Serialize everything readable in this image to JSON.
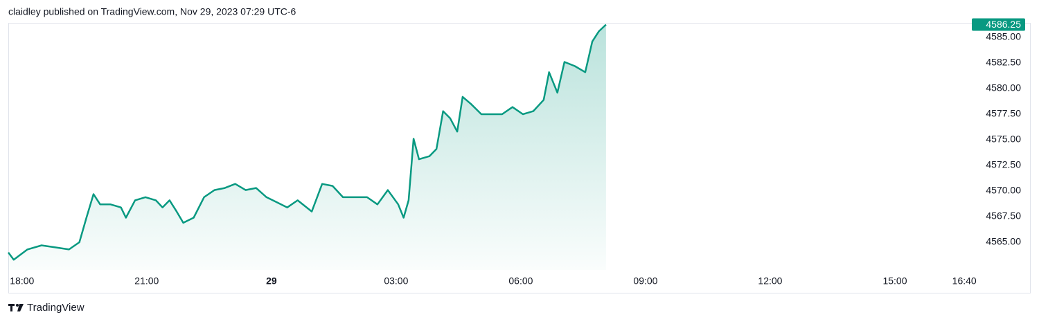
{
  "header": {
    "title": "claidley published on TradingView.com, Nov 29, 2023 07:29 UTC-6"
  },
  "chart_data": {
    "type": "area",
    "series": [
      {
        "color": "#089981",
        "x": [
          17.67,
          17.8,
          18.13,
          18.47,
          18.8,
          19.13,
          19.38,
          19.55,
          19.72,
          19.88,
          20.13,
          20.38,
          20.5,
          20.72,
          20.97,
          21.22,
          21.38,
          21.55,
          21.72,
          21.88,
          22.13,
          22.38,
          22.63,
          22.88,
          23.13,
          23.38,
          23.63,
          23.88,
          24.13,
          24.38,
          24.63,
          24.97,
          25.22,
          25.47,
          25.72,
          25.97,
          26.3,
          26.55,
          26.8,
          27.05,
          27.18,
          27.3,
          27.42,
          27.55,
          27.8,
          27.97,
          28.13,
          28.3,
          28.47,
          28.6,
          28.8,
          29.05,
          29.3,
          29.55,
          29.8,
          30.05,
          30.3,
          30.55,
          30.68,
          30.88,
          31.05,
          31.3,
          31.55,
          31.72,
          31.88,
          32.05
        ],
        "values": [
          4564.0,
          4563.3,
          4564.3,
          4564.7,
          4564.5,
          4564.3,
          4565.0,
          4567.4,
          4569.7,
          4568.7,
          4568.7,
          4568.4,
          4567.4,
          4569.1,
          4569.4,
          4569.1,
          4568.4,
          4569.1,
          4568.0,
          4566.9,
          4567.4,
          4569.4,
          4570.1,
          4570.3,
          4570.7,
          4570.1,
          4570.3,
          4569.4,
          4568.9,
          4568.4,
          4569.1,
          4568.0,
          4570.7,
          4570.5,
          4569.4,
          4569.4,
          4569.4,
          4568.7,
          4570.1,
          4568.7,
          4567.4,
          4569.1,
          4575.1,
          4573.1,
          4573.4,
          4574.1,
          4577.8,
          4577.1,
          4575.8,
          4579.2,
          4578.5,
          4577.5,
          4577.5,
          4577.5,
          4578.2,
          4577.5,
          4577.8,
          4578.9,
          4581.6,
          4579.6,
          4582.6,
          4582.2,
          4581.6,
          4584.6,
          4585.6,
          4586.25
        ]
      }
    ],
    "xlim": [
      17.67,
      40.8
    ],
    "xticks": [
      {
        "value": 18,
        "label": "18:00"
      },
      {
        "value": 21,
        "label": "21:00"
      },
      {
        "value": 24,
        "label": "29",
        "bold": true
      },
      {
        "value": 27,
        "label": "03:00"
      },
      {
        "value": 30,
        "label": "06:00"
      },
      {
        "value": 33,
        "label": "09:00"
      },
      {
        "value": 36,
        "label": "12:00"
      },
      {
        "value": 39,
        "label": "15:00"
      },
      {
        "value": 40.67,
        "label": "16:40"
      }
    ],
    "ylim": [
      4562.3,
      4586.42
    ],
    "yticks": [
      {
        "value": 4565,
        "label": "4565.00"
      },
      {
        "value": 4567.5,
        "label": "4567.50"
      },
      {
        "value": 4570,
        "label": "4570.00"
      },
      {
        "value": 4572.5,
        "label": "4572.50"
      },
      {
        "value": 4575,
        "label": "4575.00"
      },
      {
        "value": 4577.5,
        "label": "4577.50"
      },
      {
        "value": 4580,
        "label": "4580.00"
      },
      {
        "value": 4582.5,
        "label": "4582.50"
      },
      {
        "value": 4585,
        "label": "4585.00"
      }
    ]
  },
  "footer": {
    "brand": "TradingView"
  }
}
